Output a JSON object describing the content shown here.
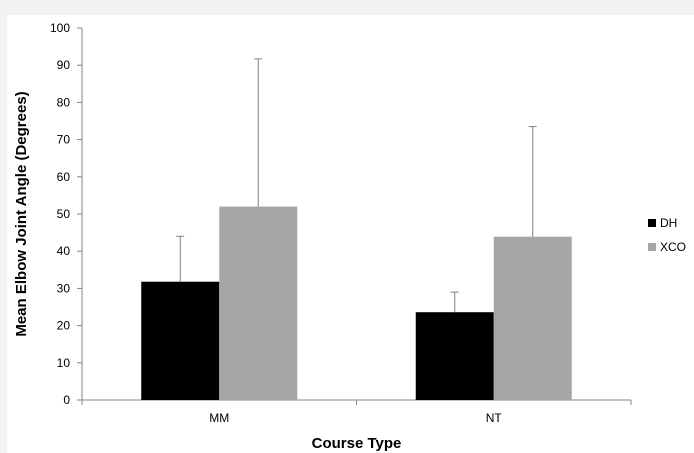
{
  "chart_data": {
    "type": "bar",
    "title": "",
    "xlabel": "Course Type",
    "ylabel": "Mean Elbow Joint Angle (Degrees)",
    "categories": [
      "MM",
      "NT"
    ],
    "ylim": [
      0,
      100
    ],
    "yticks": [
      0,
      10,
      20,
      30,
      40,
      50,
      60,
      70,
      80,
      90,
      100
    ],
    "grid": false,
    "legend": "right",
    "series": [
      {
        "name": "DH",
        "color": "#000000",
        "values": [
          31.8,
          23.6
        ],
        "error_upper": [
          44,
          29
        ]
      },
      {
        "name": "XCO",
        "color": "#a6a6a6",
        "values": [
          52.0,
          43.9
        ],
        "error_upper": [
          91.7,
          73.5
        ]
      }
    ]
  }
}
